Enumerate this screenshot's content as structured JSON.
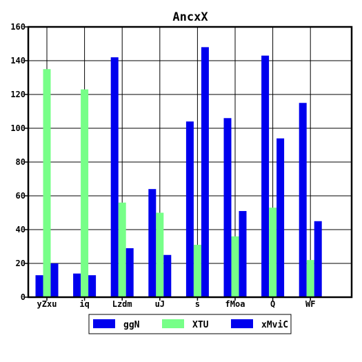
{
  "chart_data": {
    "type": "bar",
    "title": "AncxX",
    "xlabel": "",
    "ylabel": "",
    "categories": [
      "yZxu",
      "iq",
      "Lzdm",
      "uJ",
      "s",
      "fMoa",
      "Q",
      "WF"
    ],
    "ylim": [
      0,
      160
    ],
    "yticks": [
      0,
      20,
      40,
      60,
      80,
      100,
      120,
      140,
      160
    ],
    "grid": true,
    "legend_position": "bottom-center",
    "series": [
      {
        "name": "ggN",
        "color": "#0000ee",
        "values": [
          13,
          14,
          142,
          64,
          104,
          106,
          143,
          115
        ]
      },
      {
        "name": "XTU",
        "color": "#77ff88",
        "values": [
          135,
          123,
          56,
          50,
          31,
          36,
          53,
          22
        ]
      },
      {
        "name": "xMviC",
        "color": "#0000ee",
        "values": [
          20,
          13,
          29,
          25,
          148,
          51,
          94,
          45
        ]
      }
    ]
  }
}
